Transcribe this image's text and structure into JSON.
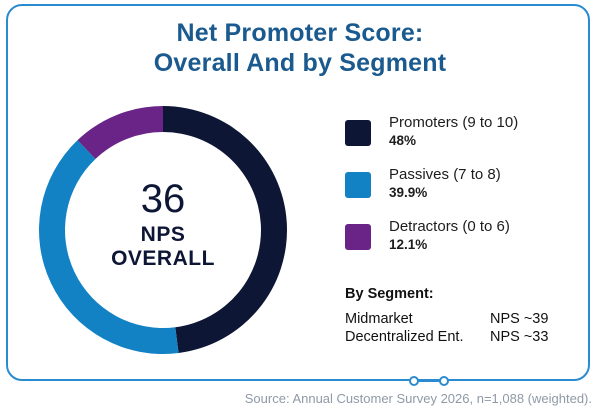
{
  "title": {
    "line1": "Net Promoter Score:",
    "line2": "Overall And by Segment"
  },
  "center": {
    "score": "36",
    "line1": "NPS",
    "line2": "OVERALL"
  },
  "legend": [
    {
      "label": "Promoters (9 to 10)",
      "value": "48%",
      "color": "#0e1636"
    },
    {
      "label": "Passives (7 to 8)",
      "value": "39.9%",
      "color": "#1282c4"
    },
    {
      "label": "Detractors (0 to 6)",
      "value": "12.1%",
      "color": "#6a2487"
    }
  ],
  "segments": {
    "title": "By Segment:",
    "rows": [
      {
        "name": "Midmarket",
        "value": "NPS ~39"
      },
      {
        "name": "Decentralized Ent.",
        "value": "NPS ~33"
      }
    ]
  },
  "source": "Source: Annual Customer Survey 2026, n=1,088 (weighted).",
  "chart_data": {
    "type": "pie",
    "title": "Net Promoter Score: Overall And by Segment",
    "categories": [
      "Promoters (9 to 10)",
      "Passives (7 to 8)",
      "Detractors (0 to 6)"
    ],
    "values": [
      48,
      39.9,
      12.1
    ],
    "colors": [
      "#0e1636",
      "#1282c4",
      "#6a2487"
    ],
    "center_label": "36 NPS OVERALL",
    "legend_position": "right",
    "segments": [
      {
        "name": "Midmarket",
        "nps": 39
      },
      {
        "name": "Decentralized Ent.",
        "nps": 33
      }
    ]
  }
}
